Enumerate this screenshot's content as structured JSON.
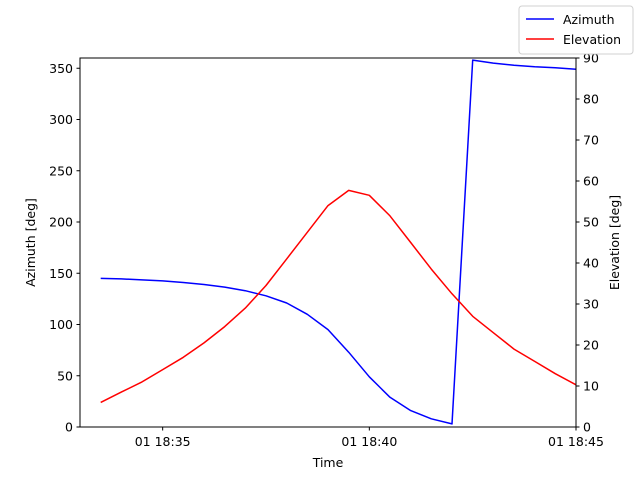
{
  "chart_data": {
    "type": "line",
    "xlabel": "Time",
    "ylabel_left": "Azimuth [deg]",
    "ylabel_right": "Elevation [deg]",
    "xlim": [
      "18:33:00",
      "18:45:00"
    ],
    "ylim_left": [
      0,
      360
    ],
    "ylim_right": [
      0,
      90
    ],
    "x_ticks": [
      "01 18:35",
      "01 18:40",
      "01 18:45"
    ],
    "y_ticks_left": [
      0,
      50,
      100,
      150,
      200,
      250,
      300,
      350
    ],
    "y_ticks_right": [
      0,
      10,
      20,
      30,
      40,
      50,
      60,
      70,
      80,
      90
    ],
    "legend_position": "top-right",
    "grid": false,
    "series": [
      {
        "name": "Azimuth",
        "axis": "left",
        "color": "#0000ff",
        "points": [
          [
            "18:33:30",
            145
          ],
          [
            "18:34:00",
            144.5
          ],
          [
            "18:34:30",
            143.5
          ],
          [
            "18:35:00",
            142.5
          ],
          [
            "18:35:30",
            141
          ],
          [
            "18:36:00",
            139
          ],
          [
            "18:36:30",
            136.5
          ],
          [
            "18:37:00",
            133
          ],
          [
            "18:37:30",
            128
          ],
          [
            "18:38:00",
            121
          ],
          [
            "18:38:30",
            110
          ],
          [
            "18:39:00",
            95
          ],
          [
            "18:39:30",
            73
          ],
          [
            "18:40:00",
            49
          ],
          [
            "18:40:30",
            29
          ],
          [
            "18:41:00",
            16
          ],
          [
            "18:41:30",
            8
          ],
          [
            "18:42:00",
            3
          ],
          [
            "18:42:30",
            358
          ],
          [
            "18:43:00",
            355
          ],
          [
            "18:43:30",
            353
          ],
          [
            "18:44:00",
            351.5
          ],
          [
            "18:44:30",
            350.5
          ],
          [
            "18:45:00",
            349
          ]
        ]
      },
      {
        "name": "Elevation",
        "axis": "right",
        "color": "#ff0000",
        "points": [
          [
            "18:33:30",
            6
          ],
          [
            "18:34:00",
            8.5
          ],
          [
            "18:34:30",
            11
          ],
          [
            "18:35:00",
            14
          ],
          [
            "18:35:30",
            17
          ],
          [
            "18:36:00",
            20.5
          ],
          [
            "18:36:30",
            24.5
          ],
          [
            "18:37:00",
            29
          ],
          [
            "18:37:30",
            34.5
          ],
          [
            "18:38:00",
            41
          ],
          [
            "18:38:30",
            47.5
          ],
          [
            "18:39:00",
            54
          ],
          [
            "18:39:30",
            57.7
          ],
          [
            "18:40:00",
            56.5
          ],
          [
            "18:40:30",
            51.5
          ],
          [
            "18:41:00",
            45
          ],
          [
            "18:41:30",
            38.5
          ],
          [
            "18:42:00",
            32.5
          ],
          [
            "18:42:30",
            27
          ],
          [
            "18:43:00",
            23
          ],
          [
            "18:43:30",
            19
          ],
          [
            "18:44:00",
            16
          ],
          [
            "18:44:30",
            13
          ],
          [
            "18:45:00",
            10.3
          ]
        ]
      }
    ]
  }
}
